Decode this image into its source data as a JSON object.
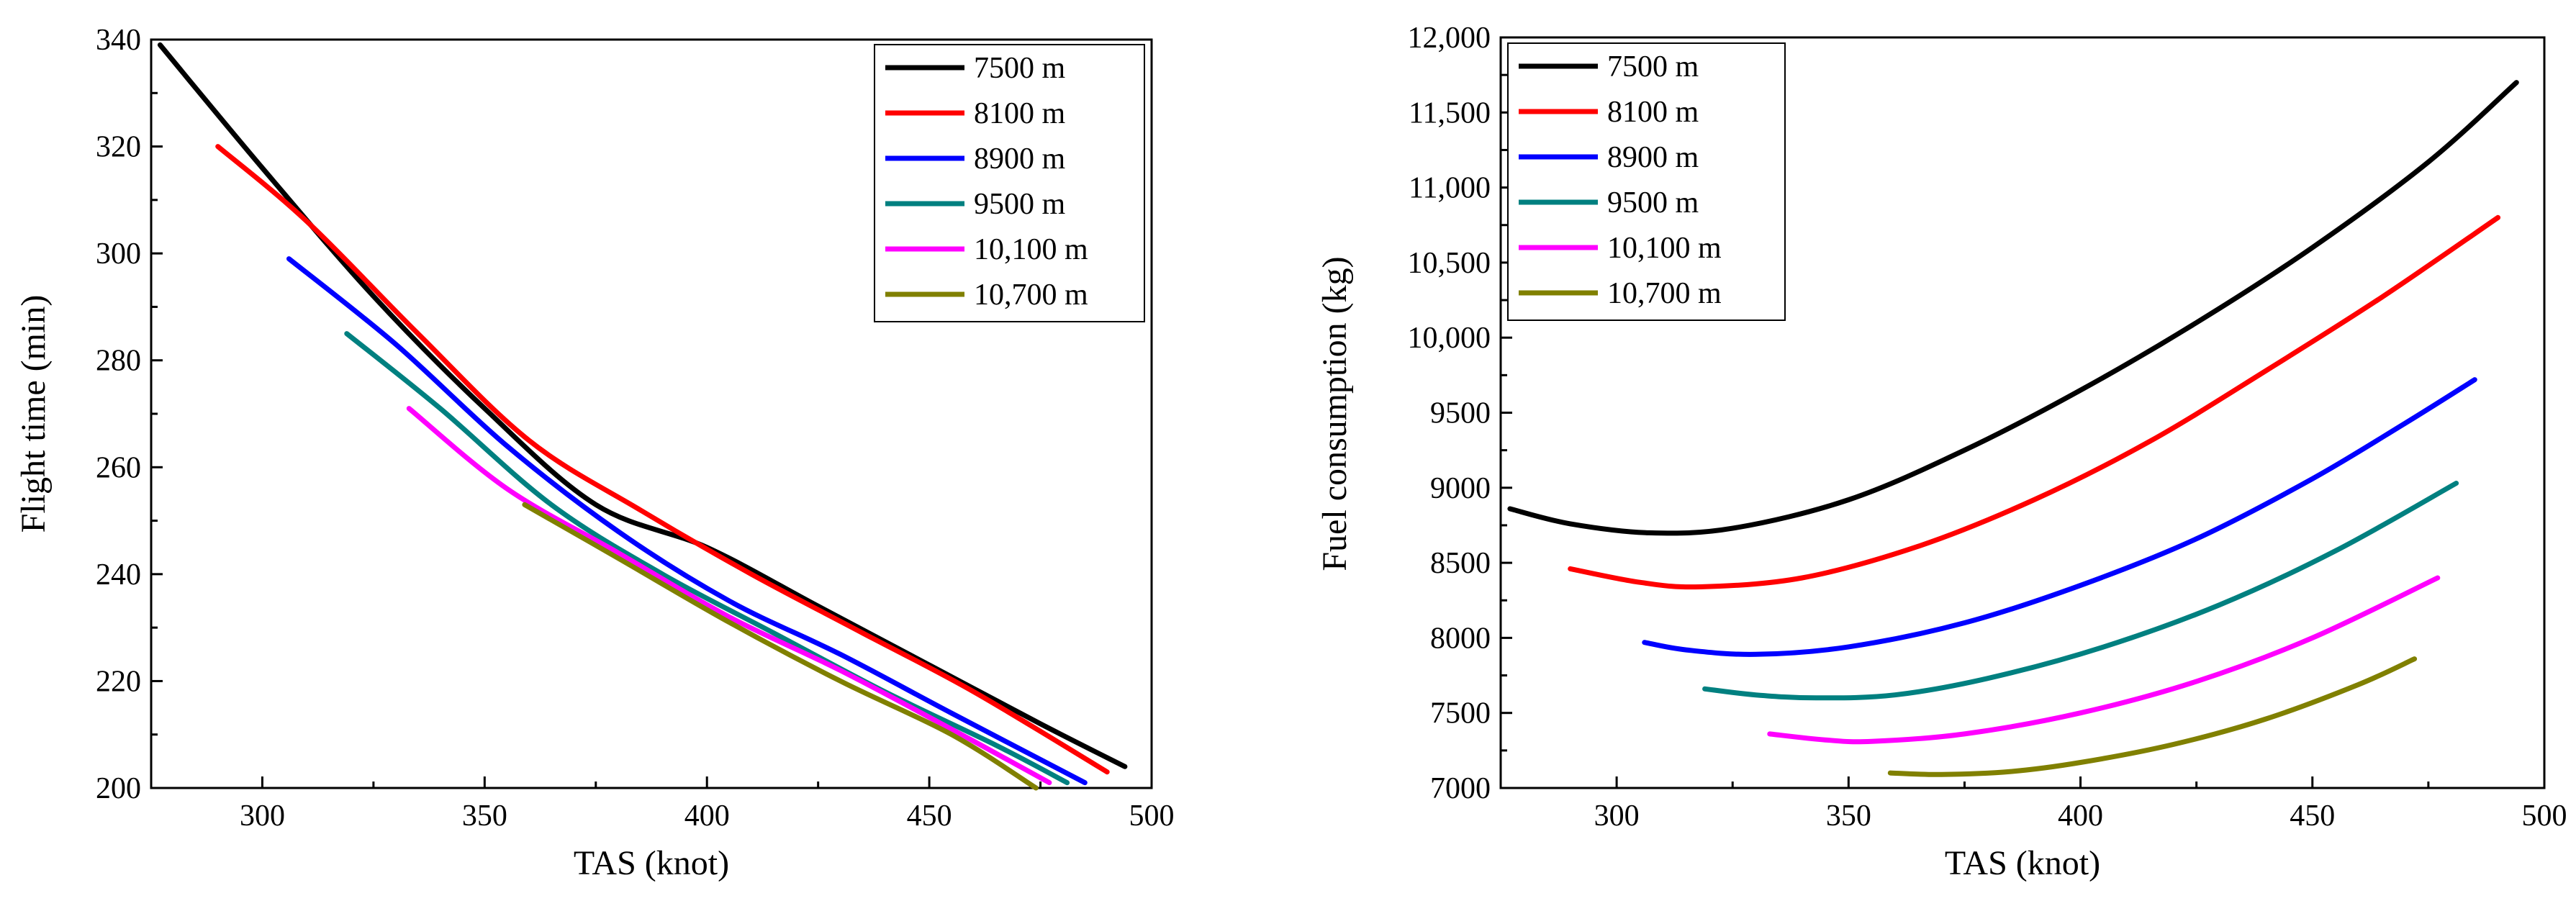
{
  "chart_data": [
    {
      "type": "line",
      "title": "",
      "xlabel": "TAS (knot)",
      "ylabel": "Flight time (min)",
      "xlim": [
        275,
        500
      ],
      "ylim": [
        200,
        340
      ],
      "xticks": [
        300,
        350,
        400,
        450,
        500
      ],
      "xtick_labels": [
        "300",
        "350",
        "400",
        "450",
        "500"
      ],
      "yticks": [
        200,
        220,
        240,
        260,
        280,
        300,
        320,
        340
      ],
      "ytick_labels": [
        "200",
        "220",
        "240",
        "260",
        "280",
        "300",
        "320",
        "340"
      ],
      "legend_position": "top-right",
      "series": [
        {
          "name": "7500 m",
          "color": "#000000",
          "x": [
            277,
            300,
            325,
            350,
            375,
            400,
            425,
            450,
            475,
            494
          ],
          "y": [
            339,
            316,
            292,
            271,
            253,
            245,
            234,
            223,
            212,
            204
          ]
        },
        {
          "name": "8100 m",
          "color": "#ff0000",
          "x": [
            290,
            310,
            335,
            360,
            385,
            410,
            435,
            460,
            490
          ],
          "y": [
            320,
            306,
            285,
            265,
            252,
            240,
            229,
            218,
            203
          ]
        },
        {
          "name": "8900 m",
          "color": "#0000ff",
          "x": [
            306,
            330,
            355,
            380,
            405,
            430,
            455,
            485
          ],
          "y": [
            299,
            283,
            264,
            248,
            235,
            225,
            214,
            201
          ]
        },
        {
          "name": "9500 m",
          "color": "#008080",
          "x": [
            319,
            340,
            365,
            390,
            415,
            440,
            465,
            481
          ],
          "y": [
            285,
            271,
            253,
            240,
            229,
            218,
            208,
            201
          ]
        },
        {
          "name": "10,100 m",
          "color": "#ff00ff",
          "x": [
            333,
            355,
            380,
            405,
            430,
            455,
            477
          ],
          "y": [
            271,
            256,
            244,
            232,
            222,
            211,
            201
          ]
        },
        {
          "name": "10,700 m",
          "color": "#808000",
          "x": [
            359,
            380,
            405,
            430,
            455,
            474
          ],
          "y": [
            253,
            243,
            231,
            220,
            210,
            200
          ]
        }
      ]
    },
    {
      "type": "line",
      "title": "",
      "xlabel": "TAS (knot)",
      "ylabel": "Fuel consumption (kg)",
      "xlim": [
        275,
        500
      ],
      "ylim": [
        7000,
        12000
      ],
      "xticks": [
        300,
        350,
        400,
        450,
        500
      ],
      "xtick_labels": [
        "300",
        "350",
        "400",
        "450",
        "500"
      ],
      "yticks": [
        7000,
        7500,
        8000,
        8500,
        9000,
        9500,
        10000,
        10500,
        11000,
        11500,
        12000
      ],
      "ytick_labels": [
        "7000",
        "7500",
        "8000",
        "8500",
        "9000",
        "9500",
        "10,000",
        "10,500",
        "11,000",
        "11,500",
        "12,000"
      ],
      "legend_position": "top-left",
      "series": [
        {
          "name": "7500 m",
          "color": "#000000",
          "x": [
            277,
            290,
            307,
            325,
            350,
            375,
            400,
            425,
            450,
            475,
            494
          ],
          "y": [
            8860,
            8760,
            8700,
            8730,
            8920,
            9250,
            9650,
            10100,
            10600,
            11170,
            11700
          ]
        },
        {
          "name": "8100 m",
          "color": "#ff0000",
          "x": [
            290,
            305,
            318,
            340,
            365,
            390,
            415,
            440,
            465,
            490
          ],
          "y": [
            8460,
            8370,
            8340,
            8400,
            8610,
            8920,
            9310,
            9780,
            10270,
            10800
          ]
        },
        {
          "name": "8900 m",
          "color": "#0000ff",
          "x": [
            306,
            315,
            330,
            350,
            375,
            400,
            425,
            450,
            470,
            485
          ],
          "y": [
            7970,
            7920,
            7890,
            7940,
            8100,
            8350,
            8660,
            9060,
            9430,
            9720
          ]
        },
        {
          "name": "9500 m",
          "color": "#008080",
          "x": [
            319,
            330,
            343,
            360,
            380,
            405,
            430,
            455,
            481
          ],
          "y": [
            7660,
            7620,
            7600,
            7620,
            7730,
            7940,
            8220,
            8580,
            9030
          ]
        },
        {
          "name": "10,100 m",
          "color": "#ff00ff",
          "x": [
            333,
            345,
            355,
            375,
            400,
            425,
            450,
            477
          ],
          "y": [
            7360,
            7320,
            7310,
            7360,
            7500,
            7710,
            8000,
            8400
          ]
        },
        {
          "name": "10,700 m",
          "color": "#808000",
          "x": [
            359,
            370,
            385,
            400,
            420,
            440,
            460,
            472
          ],
          "y": [
            7100,
            7090,
            7110,
            7170,
            7290,
            7460,
            7690,
            7860
          ]
        }
      ]
    }
  ]
}
